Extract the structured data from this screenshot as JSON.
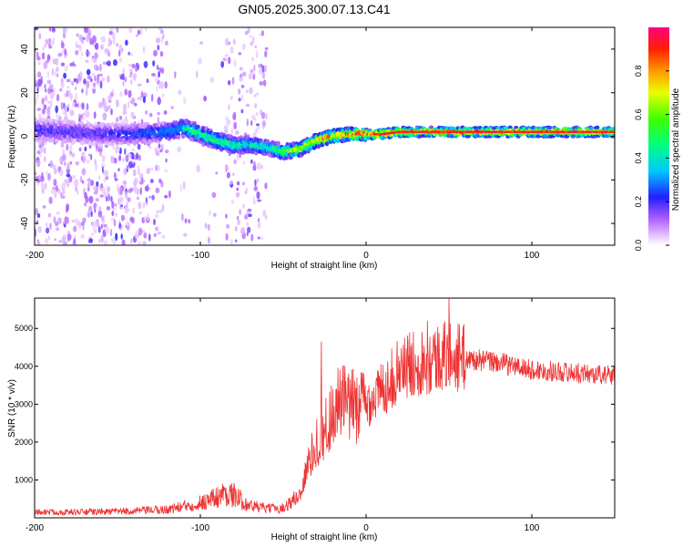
{
  "title": "GN05.2025.300.07.13.C41",
  "chart_data": [
    {
      "type": "heatmap",
      "xlabel": "Height of straight line (km)",
      "ylabel": "Frequency (Hz)",
      "xlim": [
        -200,
        150
      ],
      "ylim": [
        -50,
        50
      ],
      "xticks": [
        -200,
        -100,
        0,
        100
      ],
      "yticks": [
        -40,
        -20,
        0,
        20,
        40
      ],
      "colorbar": {
        "label": "Normalized spectral amplitude",
        "range": [
          0,
          1
        ],
        "ticks": [
          0.0,
          0.2,
          0.4,
          0.6,
          0.8
        ],
        "tick_labels": [
          "0.0",
          "0.2",
          "0.4",
          "0.6",
          "0.8"
        ]
      },
      "center_line": {
        "x": [
          -200,
          -180,
          -160,
          -140,
          -120,
          -110,
          -100,
          -90,
          -80,
          -70,
          -60,
          -50,
          -40,
          -30,
          -20,
          -10,
          0,
          10,
          20,
          50,
          100,
          150
        ],
        "frequency": [
          3,
          2,
          1,
          1,
          2,
          4,
          1,
          -2,
          -4,
          -4,
          -5,
          -7,
          -6,
          -2,
          0,
          1,
          1,
          1,
          2,
          2,
          2,
          2
        ],
        "amplitude": [
          0.2,
          0.2,
          0.2,
          0.25,
          0.35,
          0.45,
          0.5,
          0.55,
          0.5,
          0.45,
          0.45,
          0.6,
          0.7,
          0.75,
          0.85,
          0.9,
          0.95,
          0.9,
          0.85,
          0.9,
          0.9,
          0.85
        ]
      }
    },
    {
      "type": "line",
      "xlabel": "Height of straight line (km)",
      "ylabel": "SNR (10 * v/v)",
      "xlim": [
        -200,
        150
      ],
      "ylim": [
        0,
        5800
      ],
      "xticks": [
        -200,
        -100,
        0,
        100
      ],
      "yticks": [
        1000,
        2000,
        3000,
        4000,
        5000
      ],
      "series": [
        {
          "name": "SNR",
          "color": "#ee3333",
          "x": [
            -200,
            -180,
            -160,
            -140,
            -120,
            -110,
            -100,
            -90,
            -85,
            -80,
            -75,
            -70,
            -60,
            -50,
            -40,
            -35,
            -30,
            -25,
            -20,
            -15,
            -10,
            -5,
            0,
            10,
            20,
            30,
            40,
            50,
            60,
            80,
            100,
            120,
            150
          ],
          "y": [
            150,
            150,
            160,
            180,
            220,
            300,
            400,
            550,
            650,
            600,
            450,
            320,
            250,
            260,
            600,
            1400,
            2000,
            2300,
            2800,
            3100,
            2900,
            3000,
            3000,
            3400,
            3900,
            4100,
            4200,
            4300,
            4200,
            4100,
            3900,
            3850,
            3750
          ],
          "peaks": [
            {
              "x": -27,
              "y": 4650
            },
            {
              "x": 50,
              "y": 5800
            },
            {
              "x": 37,
              "y": 5200
            }
          ]
        }
      ]
    }
  ]
}
